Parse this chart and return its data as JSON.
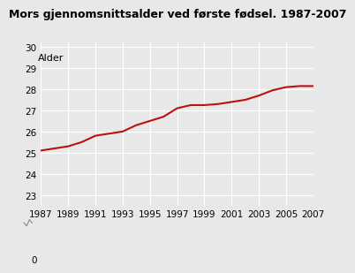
{
  "title": "Mors gjennomsnittsalder ved første fødsel. 1987-2007",
  "ylabel": "Alder",
  "years": [
    1987,
    1988,
    1989,
    1990,
    1991,
    1992,
    1993,
    1994,
    1995,
    1996,
    1997,
    1998,
    1999,
    2000,
    2001,
    2002,
    2003,
    2004,
    2005,
    2006,
    2007
  ],
  "values": [
    25.1,
    25.2,
    25.3,
    25.5,
    25.8,
    25.9,
    26.0,
    26.3,
    26.5,
    26.7,
    27.1,
    27.25,
    27.25,
    27.3,
    27.4,
    27.5,
    27.7,
    27.95,
    28.1,
    28.15,
    28.15
  ],
  "line_color": "#bb1111",
  "line_width": 1.5,
  "background_color": "#e8e8e8",
  "plot_bg_color": "#e8e8e8",
  "grid_color": "#ffffff",
  "xticks": [
    1987,
    1989,
    1991,
    1993,
    1995,
    1997,
    1999,
    2001,
    2003,
    2005,
    2007
  ],
  "yticks_main": [
    23,
    24,
    25,
    26,
    27,
    28,
    29,
    30
  ],
  "ytick_zero": 0,
  "title_fontsize": 9,
  "label_fontsize": 7.5
}
